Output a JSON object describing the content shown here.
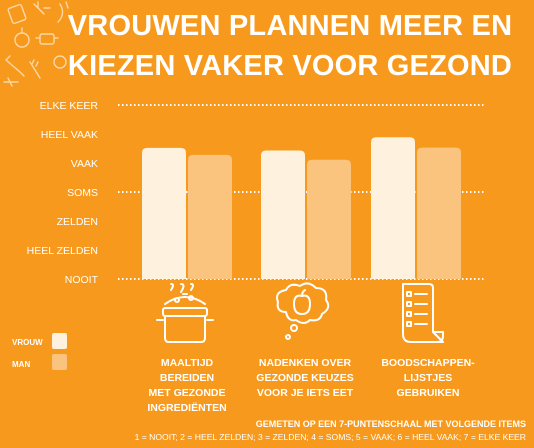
{
  "title_line1": "VROUWEN PLANNEN MEER EN",
  "title_line2": "KIEZEN VAKER VOOR GEZOND",
  "chart_data": {
    "type": "bar",
    "categories": [
      "MAALTIJD BEREIDEN\nMET GEZONDE\nINGREDIËNTEN",
      "NADENKEN OVER\nGEZONDE KEUZES\nVOOR JE IETS EET",
      "BOODSCHAPPEN-\nLIJSTJES GEBRUIKEN"
    ],
    "series": [
      {
        "name": "VROUW",
        "values": [
          5.52,
          5.43,
          5.89
        ],
        "color": "#FEF1DE"
      },
      {
        "name": "MAN",
        "values": [
          5.28,
          5.11,
          5.53
        ],
        "color": "#FAC47F"
      }
    ],
    "y_tick_labels": [
      "NOOIT",
      "HEEL ZELDEN",
      "ZELDEN",
      "SOMS",
      "VAAK",
      "HEEL VAAK",
      "ELKE KEER"
    ],
    "ylim": [
      1,
      7
    ],
    "dotted_gridlines_at": [
      1,
      4,
      7
    ],
    "legend_placement": "bottom-left"
  },
  "footnote_line1": "GEMETEN OP EEN 7-PUNTENSCHAAL MET VOLGENDE ITEMS",
  "footnote_line2": "1 = NOOIT; 2 = HEEL ZELDEN; 3 = ZELDEN; 4 = SOMS; 5 = VAAK; 6 = HEEL VAAK; 7 = ELKE KEER",
  "icons": [
    "cooking-pot-icon",
    "thought-apple-icon",
    "shopping-list-icon",
    "kitchen-utensils-icon"
  ]
}
